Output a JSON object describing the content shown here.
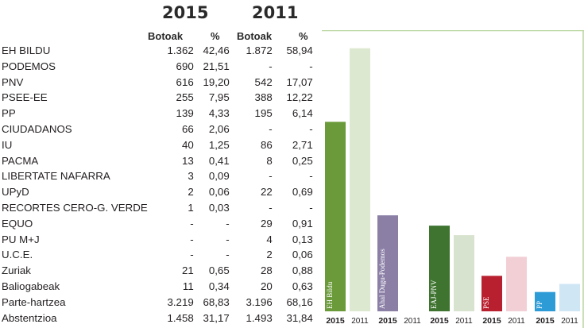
{
  "header": {
    "year_2015": "2015",
    "year_2011": "2011",
    "botoak_label": "Botoak",
    "percent_label": "%"
  },
  "table": {
    "rows": [
      {
        "name": "EH BILDU",
        "v2015": "1.362",
        "p2015": "42,46",
        "v2011": "1.872",
        "p2011": "58,94"
      },
      {
        "name": "PODEMOS",
        "v2015": "690",
        "p2015": "21,51",
        "v2011": "-",
        "p2011": "-"
      },
      {
        "name": "PNV",
        "v2015": "616",
        "p2015": "19,20",
        "v2011": "542",
        "p2011": "17,07"
      },
      {
        "name": "PSEE-EE",
        "v2015": "255",
        "p2015": "7,95",
        "v2011": "388",
        "p2011": "12,22"
      },
      {
        "name": "PP",
        "v2015": "139",
        "p2015": "4,33",
        "v2011": "195",
        "p2011": "6,14"
      },
      {
        "name": "CIUDADANOS",
        "v2015": "66",
        "p2015": "2,06",
        "v2011": "-",
        "p2011": "-"
      },
      {
        "name": "IU",
        "v2015": "40",
        "p2015": "1,25",
        "v2011": "86",
        "p2011": "2,71"
      },
      {
        "name": "PACMA",
        "v2015": "13",
        "p2015": "0,41",
        "v2011": "8",
        "p2011": "0,25"
      },
      {
        "name": "LIBERTATE NAFARRA",
        "v2015": "3",
        "p2015": "0,09",
        "v2011": "-",
        "p2011": "-"
      },
      {
        "name": "UPyD",
        "v2015": "2",
        "p2015": "0,06",
        "v2011": "22",
        "p2011": "0,69"
      },
      {
        "name": "RECORTES CERO-G. VERDE",
        "v2015": "1",
        "p2015": "0,03",
        "v2011": "-",
        "p2011": "-"
      },
      {
        "name": "EQUO",
        "v2015": "-",
        "p2015": "-",
        "v2011": "29",
        "p2011": "0,91"
      },
      {
        "name": "PU M+J",
        "v2015": "-",
        "p2015": "-",
        "v2011": "4",
        "p2011": "0,13"
      },
      {
        "name": "U.C.E.",
        "v2015": "-",
        "p2015": "-",
        "v2011": "2",
        "p2011": "0,06"
      },
      {
        "name": "Zuriak",
        "v2015": "21",
        "p2015": "0,65",
        "v2011": "28",
        "p2011": "0,88"
      },
      {
        "name": "Baliogabeak",
        "v2015": "11",
        "p2015": "0,34",
        "v2011": "20",
        "p2011": "0,63"
      },
      {
        "name": "Parte-hartzea",
        "v2015": "3.219",
        "p2015": "68,83",
        "v2011": "3.196",
        "p2011": "68,16"
      },
      {
        "name": "Abstentzioa",
        "v2015": "1.458",
        "p2015": "31,17",
        "v2011": "1.493",
        "p2011": "31,84"
      }
    ]
  },
  "chart_data": {
    "type": "bar",
    "title": "",
    "xlabel": "",
    "ylabel": "",
    "ylim": [
      0,
      60
    ],
    "grid": false,
    "groups": [
      {
        "label": "EH Bildu",
        "values": {
          "2015": 42.46,
          "2011": 58.94
        },
        "color_2015": "#6a9a3a",
        "color_2011": "#dde8d0"
      },
      {
        "label": "Ahal Dugu-Podemos",
        "values": {
          "2015": 21.51,
          "2011": 0
        },
        "color_2015": "#8b7fa6",
        "color_2011": "#e4e0eb"
      },
      {
        "label": "EAJ-PNV",
        "values": {
          "2015": 19.2,
          "2011": 17.07
        },
        "color_2015": "#3f7430",
        "color_2011": "#d8e3cf"
      },
      {
        "label": "PSE",
        "values": {
          "2015": 7.95,
          "2011": 12.22
        },
        "color_2015": "#b8202f",
        "color_2011": "#f2cfd4"
      },
      {
        "label": "PP",
        "values": {
          "2015": 4.33,
          "2011": 6.14
        },
        "color_2015": "#2d9bd6",
        "color_2011": "#cfe6f4"
      }
    ],
    "years": [
      "2015",
      "2011"
    ]
  },
  "colors": {
    "frame": "#b9d6a0",
    "text": "#231f20"
  }
}
